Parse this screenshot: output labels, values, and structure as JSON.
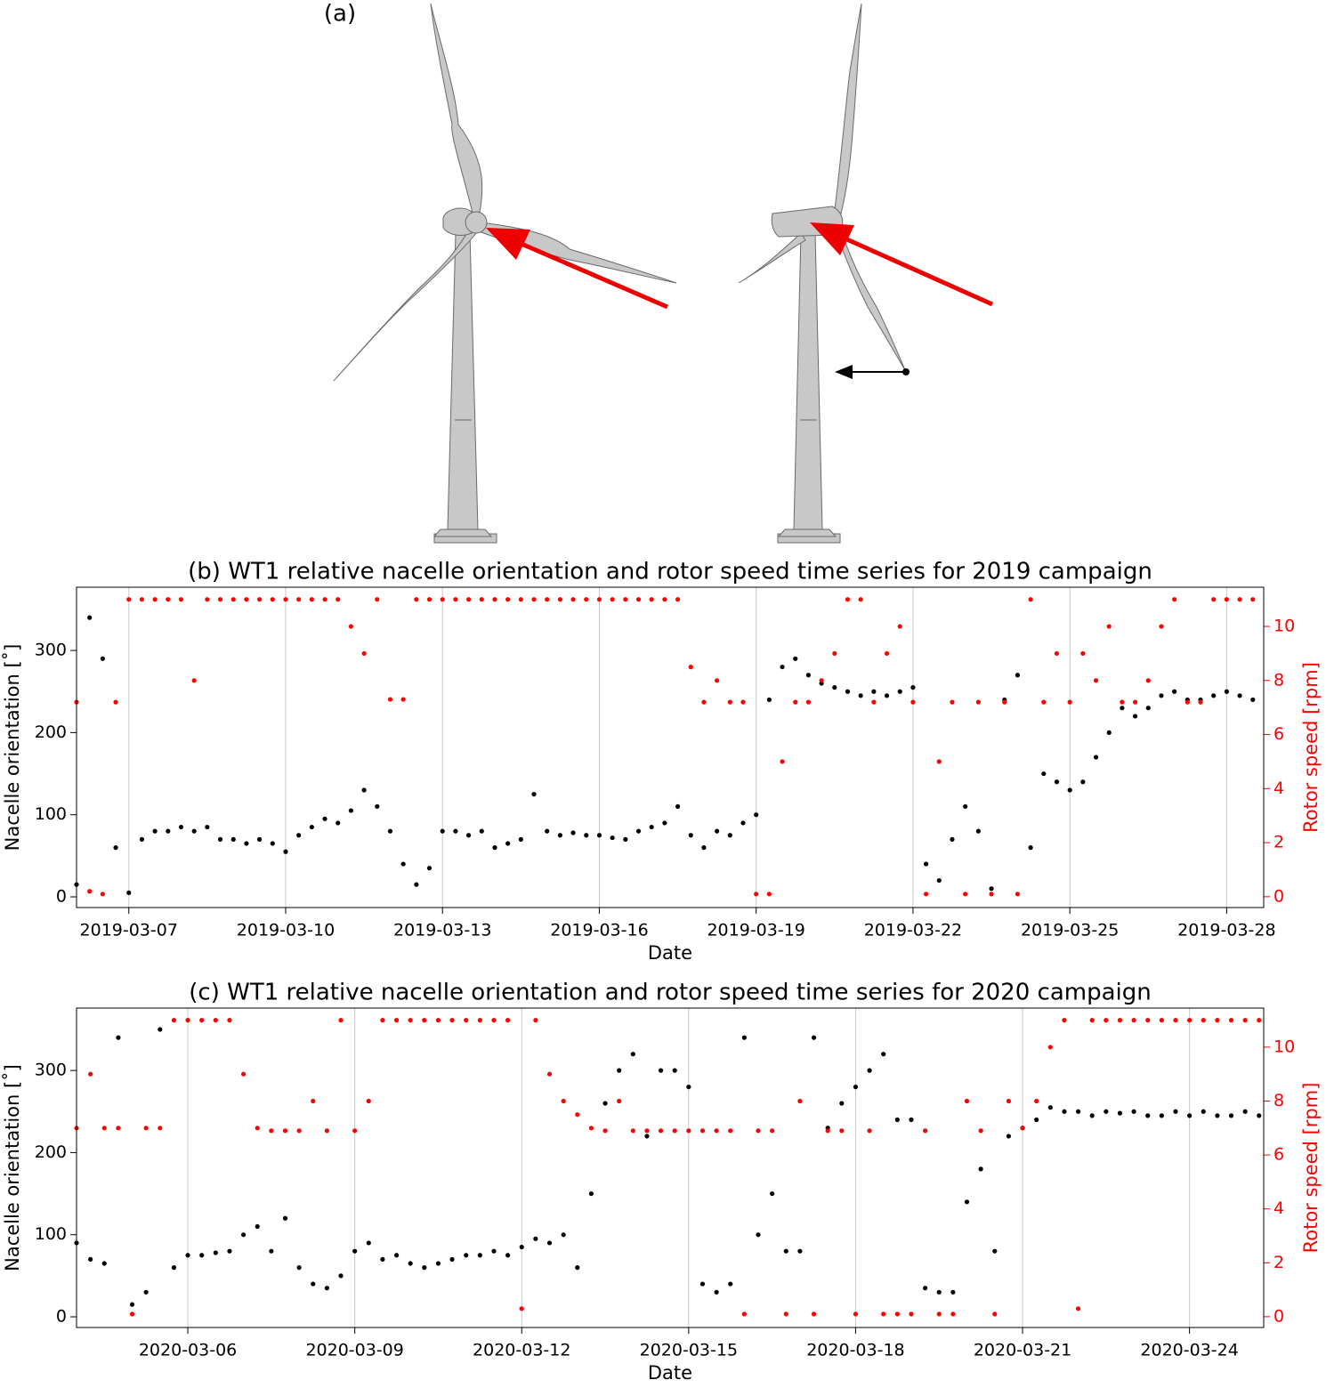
{
  "illustration_label": "(a)",
  "chart_data": [
    {
      "type": "scatter",
      "title": "(b) WT1 relative nacelle orientation and rotor speed time series for 2019 campaign",
      "x_label": "Date",
      "y_label": "Nacelle orientation [˚]",
      "y2_label": "Rotor speed [rpm]",
      "x": [
        "2019-03-06 00:00",
        "2019-03-06 06:00",
        "2019-03-06 12:00",
        "2019-03-06 18:00",
        "2019-03-07 00:00",
        "2019-03-07 06:00",
        "2019-03-07 12:00",
        "2019-03-07 18:00",
        "2019-03-08 00:00",
        "2019-03-08 06:00",
        "2019-03-08 12:00",
        "2019-03-08 18:00",
        "2019-03-09 00:00",
        "2019-03-09 06:00",
        "2019-03-09 12:00",
        "2019-03-09 18:00",
        "2019-03-10 00:00",
        "2019-03-10 06:00",
        "2019-03-10 12:00",
        "2019-03-10 18:00",
        "2019-03-11 00:00",
        "2019-03-11 06:00",
        "2019-03-11 12:00",
        "2019-03-11 18:00",
        "2019-03-12 00:00",
        "2019-03-12 06:00",
        "2019-03-12 12:00",
        "2019-03-12 18:00",
        "2019-03-13 00:00",
        "2019-03-13 06:00",
        "2019-03-13 12:00",
        "2019-03-13 18:00",
        "2019-03-14 00:00",
        "2019-03-14 06:00",
        "2019-03-14 12:00",
        "2019-03-14 18:00",
        "2019-03-15 00:00",
        "2019-03-15 06:00",
        "2019-03-15 12:00",
        "2019-03-15 18:00",
        "2019-03-16 00:00",
        "2019-03-16 06:00",
        "2019-03-16 12:00",
        "2019-03-16 18:00",
        "2019-03-17 00:00",
        "2019-03-17 06:00",
        "2019-03-17 12:00",
        "2019-03-17 18:00",
        "2019-03-18 00:00",
        "2019-03-18 06:00",
        "2019-03-18 12:00",
        "2019-03-18 18:00",
        "2019-03-19 00:00",
        "2019-03-19 06:00",
        "2019-03-19 12:00",
        "2019-03-19 18:00",
        "2019-03-20 00:00",
        "2019-03-20 06:00",
        "2019-03-20 12:00",
        "2019-03-20 18:00",
        "2019-03-21 00:00",
        "2019-03-21 06:00",
        "2019-03-21 12:00",
        "2019-03-21 18:00",
        "2019-03-22 00:00",
        "2019-03-22 06:00",
        "2019-03-22 12:00",
        "2019-03-22 18:00",
        "2019-03-23 00:00",
        "2019-03-23 06:00",
        "2019-03-23 12:00",
        "2019-03-23 18:00",
        "2019-03-24 00:00",
        "2019-03-24 06:00",
        "2019-03-24 12:00",
        "2019-03-24 18:00",
        "2019-03-25 00:00",
        "2019-03-25 06:00",
        "2019-03-25 12:00",
        "2019-03-25 18:00",
        "2019-03-26 00:00",
        "2019-03-26 06:00",
        "2019-03-26 12:00",
        "2019-03-26 18:00",
        "2019-03-27 00:00",
        "2019-03-27 06:00",
        "2019-03-27 12:00",
        "2019-03-27 18:00",
        "2019-03-28 00:00",
        "2019-03-28 06:00",
        "2019-03-28 12:00"
      ],
      "xlim": [
        "2019-03-06 00:00",
        "2019-03-28 17:00"
      ],
      "xticks": [
        "2019-03-07",
        "2019-03-10",
        "2019-03-13",
        "2019-03-16",
        "2019-03-19",
        "2019-03-22",
        "2019-03-25",
        "2019-03-28"
      ],
      "ylim": [
        -13,
        377
      ],
      "yticks": [
        0,
        100,
        200,
        300
      ],
      "y2lim": [
        -0.4,
        11.45
      ],
      "y2ticks": [
        0,
        2,
        4,
        6,
        8,
        10
      ],
      "grid": "x",
      "series": [
        {
          "color": "#000000",
          "values": [
            15,
            340,
            290,
            60,
            5,
            70,
            80,
            80,
            85,
            80,
            85,
            70,
            70,
            65,
            70,
            65,
            55,
            75,
            85,
            95,
            90,
            105,
            130,
            110,
            80,
            40,
            15,
            35,
            80,
            80,
            75,
            80,
            60,
            65,
            70,
            125,
            80,
            75,
            78,
            75,
            75,
            72,
            70,
            80,
            85,
            90,
            110,
            75,
            60,
            80,
            75,
            90,
            100,
            240,
            280,
            290,
            270,
            260,
            255,
            250,
            245,
            250,
            245,
            250,
            255,
            40,
            20,
            70,
            110,
            80,
            10,
            240,
            270,
            60,
            150,
            140,
            130,
            140,
            170,
            200,
            230,
            220,
            230,
            245,
            250,
            240,
            240,
            245,
            250,
            245,
            240
          ]
        },
        {
          "color": "#ff0000",
          "axis": "y2",
          "values": [
            7.2,
            0.2,
            0.1,
            7.2,
            11,
            11,
            11,
            11,
            11,
            8,
            11,
            11,
            11,
            11,
            11,
            11,
            11,
            11,
            11,
            11,
            11,
            10,
            9,
            11,
            7.3,
            7.3,
            11,
            11,
            11,
            11,
            11,
            11,
            11,
            11,
            11,
            11,
            11,
            11,
            11,
            11,
            11,
            11,
            11,
            11,
            11,
            11,
            11,
            8.5,
            7.2,
            8,
            7.2,
            7.2,
            0.1,
            0.1,
            5,
            7.2,
            7.2,
            8,
            9,
            11,
            11,
            7.2,
            9,
            10,
            7.2,
            0.1,
            5,
            7.2,
            0.1,
            7.2,
            0.1,
            7.2,
            0.1,
            11,
            7.2,
            9,
            7.2,
            9,
            8,
            10,
            7.2,
            7.2,
            8,
            10,
            11,
            7.2,
            7.2,
            11,
            11,
            11,
            11
          ]
        }
      ]
    },
    {
      "type": "scatter",
      "title": "(c) WT1 relative nacelle orientation and rotor speed time series for 2020 campaign",
      "x_label": "Date",
      "y_label": "Nacelle orientation [˚]",
      "y2_label": "Rotor speed [rpm]",
      "x": [
        "2020-03-04 00:00",
        "2020-03-04 06:00",
        "2020-03-04 12:00",
        "2020-03-04 18:00",
        "2020-03-05 00:00",
        "2020-03-05 06:00",
        "2020-03-05 12:00",
        "2020-03-05 18:00",
        "2020-03-06 00:00",
        "2020-03-06 06:00",
        "2020-03-06 12:00",
        "2020-03-06 18:00",
        "2020-03-07 00:00",
        "2020-03-07 06:00",
        "2020-03-07 12:00",
        "2020-03-07 18:00",
        "2020-03-08 00:00",
        "2020-03-08 06:00",
        "2020-03-08 12:00",
        "2020-03-08 18:00",
        "2020-03-09 00:00",
        "2020-03-09 06:00",
        "2020-03-09 12:00",
        "2020-03-09 18:00",
        "2020-03-10 00:00",
        "2020-03-10 06:00",
        "2020-03-10 12:00",
        "2020-03-10 18:00",
        "2020-03-11 00:00",
        "2020-03-11 06:00",
        "2020-03-11 12:00",
        "2020-03-11 18:00",
        "2020-03-12 00:00",
        "2020-03-12 06:00",
        "2020-03-12 12:00",
        "2020-03-12 18:00",
        "2020-03-13 00:00",
        "2020-03-13 06:00",
        "2020-03-13 12:00",
        "2020-03-13 18:00",
        "2020-03-14 00:00",
        "2020-03-14 06:00",
        "2020-03-14 12:00",
        "2020-03-14 18:00",
        "2020-03-15 00:00",
        "2020-03-15 06:00",
        "2020-03-15 12:00",
        "2020-03-15 18:00",
        "2020-03-16 00:00",
        "2020-03-16 06:00",
        "2020-03-16 12:00",
        "2020-03-16 18:00",
        "2020-03-17 00:00",
        "2020-03-17 06:00",
        "2020-03-17 12:00",
        "2020-03-17 18:00",
        "2020-03-18 00:00",
        "2020-03-18 06:00",
        "2020-03-18 12:00",
        "2020-03-18 18:00",
        "2020-03-19 00:00",
        "2020-03-19 06:00",
        "2020-03-19 12:00",
        "2020-03-19 18:00",
        "2020-03-20 00:00",
        "2020-03-20 06:00",
        "2020-03-20 12:00",
        "2020-03-20 18:00",
        "2020-03-21 00:00",
        "2020-03-21 06:00",
        "2020-03-21 12:00",
        "2020-03-21 18:00",
        "2020-03-22 00:00",
        "2020-03-22 06:00",
        "2020-03-22 12:00",
        "2020-03-22 18:00",
        "2020-03-23 00:00",
        "2020-03-23 06:00",
        "2020-03-23 12:00",
        "2020-03-23 18:00",
        "2020-03-24 00:00",
        "2020-03-24 06:00",
        "2020-03-24 12:00",
        "2020-03-24 18:00",
        "2020-03-25 00:00",
        "2020-03-25 06:00"
      ],
      "xlim": [
        "2020-03-04 00:00",
        "2020-03-25 08:00"
      ],
      "xticks": [
        "2020-03-06",
        "2020-03-09",
        "2020-03-12",
        "2020-03-15",
        "2020-03-18",
        "2020-03-21",
        "2020-03-24"
      ],
      "ylim": [
        -13,
        376
      ],
      "yticks": [
        0,
        100,
        200,
        300
      ],
      "y2lim": [
        -0.4,
        11.45
      ],
      "y2ticks": [
        0,
        2,
        4,
        6,
        8,
        10
      ],
      "grid": "x",
      "series": [
        {
          "color": "#000000",
          "values": [
            90,
            70,
            65,
            340,
            15,
            30,
            350,
            60,
            75,
            75,
            78,
            80,
            100,
            110,
            80,
            120,
            60,
            40,
            35,
            50,
            80,
            90,
            70,
            75,
            65,
            60,
            65,
            70,
            75,
            75,
            80,
            75,
            85,
            95,
            90,
            100,
            60,
            150,
            260,
            300,
            320,
            220,
            300,
            300,
            280,
            40,
            30,
            40,
            340,
            100,
            150,
            80,
            80,
            340,
            230,
            260,
            280,
            300,
            320,
            240,
            240,
            35,
            30,
            30,
            140,
            180,
            80,
            220,
            230,
            240,
            255,
            250,
            250,
            245,
            250,
            248,
            250,
            245,
            245,
            250,
            245,
            250,
            245,
            245,
            250,
            245
          ]
        },
        {
          "color": "#ff0000",
          "axis": "y2",
          "values": [
            7,
            9,
            7,
            7,
            0.1,
            7,
            7,
            11,
            11,
            11,
            11,
            11,
            9,
            7,
            6.9,
            6.9,
            6.9,
            8,
            6.9,
            11,
            6.9,
            8,
            11,
            11,
            11,
            11,
            11,
            11,
            11,
            11,
            11,
            11,
            0.3,
            11,
            9,
            8,
            7.5,
            7,
            6.9,
            8,
            6.9,
            6.9,
            6.9,
            6.9,
            6.9,
            6.9,
            6.9,
            6.9,
            0.1,
            6.9,
            6.9,
            0.1,
            8,
            0.1,
            6.9,
            6.9,
            0.1,
            6.9,
            0.1,
            0.1,
            0.1,
            6.9,
            0.1,
            0.1,
            8,
            6.9,
            0.1,
            8,
            7,
            8,
            10,
            11,
            0.3,
            11,
            11,
            11,
            11,
            11,
            11,
            11,
            11,
            11,
            11,
            11,
            11,
            11
          ]
        }
      ]
    }
  ]
}
